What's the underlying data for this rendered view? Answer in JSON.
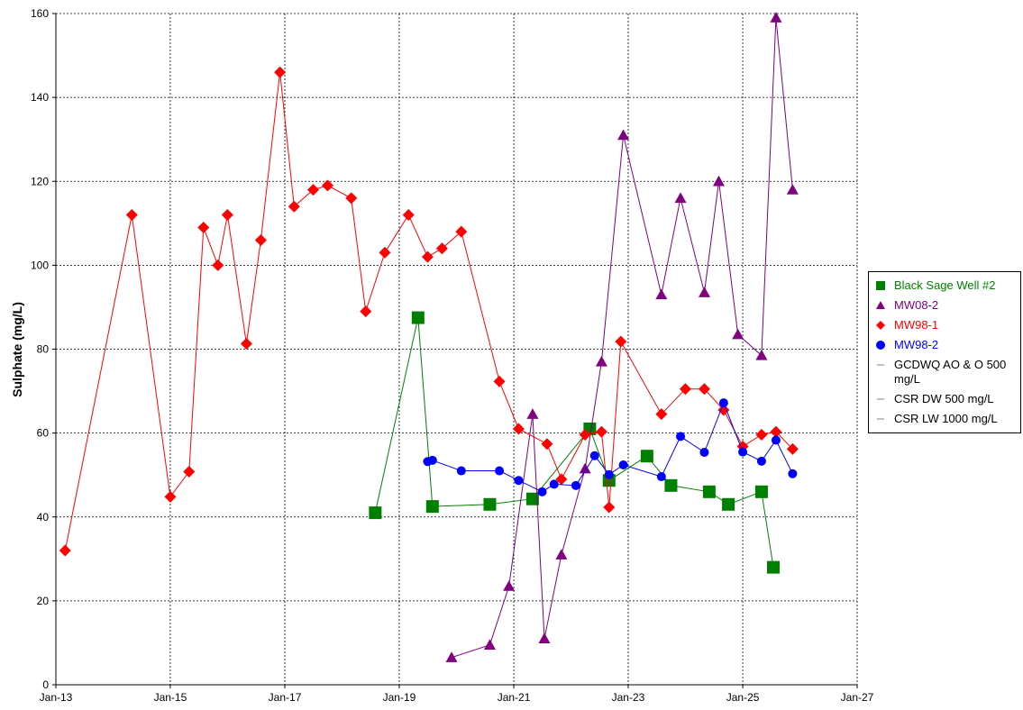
{
  "chart_data": {
    "type": "line",
    "title": "",
    "xlabel": "",
    "ylabel": "Sulphate (mg/L)",
    "xlim": [
      "2013-01-01",
      "2027-01-01"
    ],
    "ylim": [
      0,
      160
    ],
    "x_ticks": [
      "Jan-13",
      "Jan-15",
      "Jan-17",
      "Jan-19",
      "Jan-21",
      "Jan-23",
      "Jan-25",
      "Jan-27"
    ],
    "y_ticks": [
      "0",
      "20",
      "40",
      "60",
      "80",
      "100",
      "120",
      "140",
      "160"
    ],
    "grid": true,
    "legend_position": "right",
    "series": [
      {
        "name": "Black Sage Well #2",
        "color": "#008000",
        "marker": "square",
        "points": [
          [
            "2018-08-01",
            41
          ],
          [
            "2019-05-01",
            87.5
          ],
          [
            "2019-08-01",
            42.5
          ],
          [
            "2020-08-01",
            43
          ],
          [
            "2021-05-01",
            44.3
          ],
          [
            "2022-05-01",
            61
          ],
          [
            "2022-09-01",
            48.7
          ],
          [
            "2023-05-01",
            54.5
          ],
          [
            "2023-10-01",
            47.5
          ],
          [
            "2024-06-01",
            46
          ],
          [
            "2024-10-01",
            43
          ],
          [
            "2025-05-01",
            46
          ],
          [
            "2025-07-15",
            28
          ]
        ]
      },
      {
        "name": "MW08-2",
        "color": "#800080",
        "marker": "triangle",
        "points": [
          [
            "2019-12-01",
            6.5
          ],
          [
            "2020-08-01",
            9.5
          ],
          [
            "2020-12-01",
            23.5
          ],
          [
            "2021-05-01",
            64.5
          ],
          [
            "2021-07-15",
            11
          ],
          [
            "2021-11-01",
            31
          ],
          [
            "2022-04-01",
            51.5
          ],
          [
            "2022-07-15",
            77
          ],
          [
            "2022-12-01",
            131
          ],
          [
            "2023-08-01",
            93
          ],
          [
            "2023-12-01",
            116
          ],
          [
            "2024-05-01",
            93.5
          ],
          [
            "2024-08-01",
            120
          ],
          [
            "2024-12-01",
            83.5
          ],
          [
            "2025-05-01",
            78.5
          ],
          [
            "2025-08-01",
            159
          ],
          [
            "2025-11-15",
            118
          ]
        ]
      },
      {
        "name": "MW98-1",
        "color": "#ff0000",
        "marker": "diamond",
        "points": [
          [
            "2013-03-01",
            32
          ],
          [
            "2014-05-01",
            112
          ],
          [
            "2015-01-01",
            44.8
          ],
          [
            "2015-05-01",
            50.8
          ],
          [
            "2015-08-01",
            109
          ],
          [
            "2015-11-01",
            100
          ],
          [
            "2016-01-01",
            112
          ],
          [
            "2016-05-01",
            81.3
          ],
          [
            "2016-08-01",
            106
          ],
          [
            "2016-12-01",
            146
          ],
          [
            "2017-03-01",
            114
          ],
          [
            "2017-07-01",
            118
          ],
          [
            "2017-10-01",
            119
          ],
          [
            "2018-03-01",
            116
          ],
          [
            "2018-06-01",
            89
          ],
          [
            "2018-10-01",
            103
          ],
          [
            "2019-03-01",
            112
          ],
          [
            "2019-07-01",
            102
          ],
          [
            "2019-10-01",
            104
          ],
          [
            "2020-02-01",
            108
          ],
          [
            "2020-10-01",
            72.3
          ],
          [
            "2021-02-01",
            61
          ],
          [
            "2021-08-01",
            57.4
          ],
          [
            "2021-11-01",
            49
          ],
          [
            "2022-04-01",
            59.6
          ],
          [
            "2022-07-15",
            60.3
          ],
          [
            "2022-09-01",
            42.3
          ],
          [
            "2022-11-15",
            81.8
          ],
          [
            "2023-08-01",
            64.5
          ],
          [
            "2024-01-01",
            70.5
          ],
          [
            "2024-05-01",
            70.5
          ],
          [
            "2024-09-01",
            65.5
          ],
          [
            "2025-01-01",
            56.8
          ],
          [
            "2025-05-01",
            59.6
          ],
          [
            "2025-08-01",
            60.3
          ],
          [
            "2025-11-15",
            56.2
          ]
        ]
      },
      {
        "name": "MW98-2",
        "color": "#0000ff",
        "marker": "circle",
        "points": [
          [
            "2019-07-01",
            53.2
          ],
          [
            "2019-08-01",
            53.5
          ],
          [
            "2020-02-01",
            51
          ],
          [
            "2020-10-01",
            51
          ],
          [
            "2021-02-01",
            48.7
          ],
          [
            "2021-07-01",
            46
          ],
          [
            "2021-09-15",
            47.8
          ],
          [
            "2022-02-01",
            47.5
          ],
          [
            "2022-06-01",
            54.6
          ],
          [
            "2022-09-01",
            50.1
          ],
          [
            "2022-12-01",
            52.4
          ],
          [
            "2023-08-01",
            49.6
          ],
          [
            "2023-12-01",
            59.2
          ],
          [
            "2024-05-01",
            55.4
          ],
          [
            "2024-09-01",
            67.2
          ],
          [
            "2025-01-01",
            55.5
          ],
          [
            "2025-05-01",
            53.3
          ],
          [
            "2025-08-01",
            58.3
          ],
          [
            "2025-11-15",
            50.3
          ]
        ]
      },
      {
        "name": "GCDWQ AO & O 500 mg/L",
        "color": "#808080",
        "marker": "line",
        "points": []
      },
      {
        "name": "CSR DW 500 mg/L",
        "color": "#808080",
        "marker": "line",
        "points": []
      },
      {
        "name": "CSR LW 1000 mg/L",
        "color": "#808080",
        "marker": "line",
        "points": []
      }
    ]
  }
}
